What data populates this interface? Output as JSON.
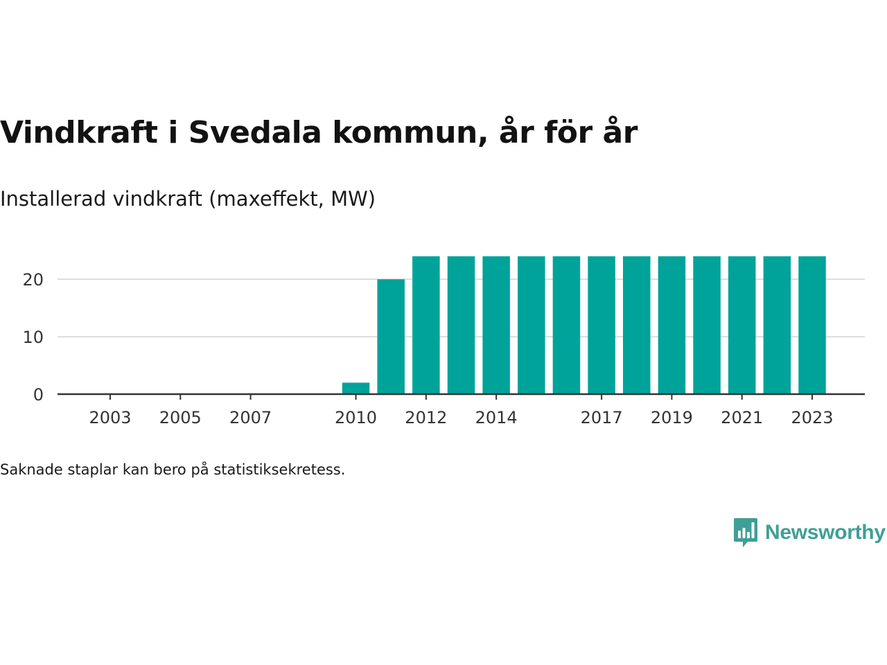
{
  "header": {
    "title": "Vindkraft i Svedala kommun, år för år",
    "subtitle": "Installerad vindkraft (maxeffekt, MW)"
  },
  "footer": {
    "note": "Saknade staplar kan bero på statistiksekretess.",
    "brand": "Newsworthy",
    "brand_icon": "newsworthy-logo-icon"
  },
  "chart_data": {
    "type": "bar",
    "title": "Vindkraft i Svedala kommun, år för år",
    "subtitle": "Installerad vindkraft (maxeffekt, MW)",
    "xlabel": "",
    "ylabel": "",
    "x": [
      2010,
      2011,
      2012,
      2013,
      2014,
      2015,
      2016,
      2017,
      2018,
      2019,
      2020,
      2021,
      2022,
      2023
    ],
    "values": [
      2,
      20,
      24,
      24,
      24,
      24,
      24,
      24,
      24,
      24,
      24,
      24,
      24,
      24
    ],
    "xlim": [
      2001.5,
      2024.5
    ],
    "ylim": [
      0,
      24
    ],
    "x_ticks": [
      2003,
      2005,
      2007,
      2010,
      2012,
      2014,
      2017,
      2019,
      2021,
      2023
    ],
    "y_ticks": [
      0,
      10,
      20
    ],
    "grid": "horizontal",
    "bar_color": "#00a39a"
  }
}
